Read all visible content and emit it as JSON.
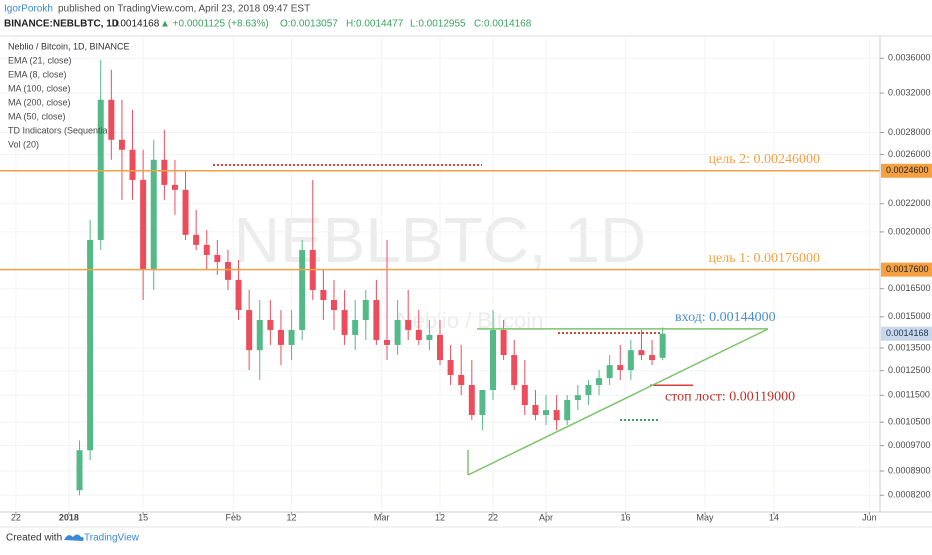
{
  "header": {
    "author": "IgorPorokh",
    "published": "published on TradingView.com, April 23, 2018 09:47 EST",
    "symbol": "BINANCE:NEBLBTC, 1D",
    "price": "0.0014168",
    "change": "▲ +0.0001125 (+8.63%)",
    "ohlc": [
      "O:0.0013057",
      "H:0.0014477",
      "L:0.0012955",
      "C:0.0014168"
    ]
  },
  "footer": {
    "created": "Created with",
    "brand": "TradingView"
  },
  "chart_data": {
    "type": "candlestick",
    "title": "Neblio / Bitcoin, 1D, BINANCE",
    "watermark": "NEBLBTC, 1D",
    "watermark_sub": "Neblio / Bitcoin",
    "legend": [
      "EMA (21, close)",
      "EMA (8, close)",
      "MA (100, close)",
      "MA (200, close)",
      "MA (50, close)",
      "TD Indicators (Sequentia",
      "Vol (20)"
    ],
    "log_scale": true,
    "grid": true,
    "up_color": "#53b987",
    "down_color": "#eb4d5c",
    "xlim": [
      "2017-12-19",
      "2018-06-03"
    ],
    "xticks": [
      {
        "value": "2017-12-22",
        "label": "22"
      },
      {
        "value": "2018-01-01",
        "label": "2018"
      },
      {
        "value": "2018-01-15",
        "label": "15"
      },
      {
        "value": "2018-02-01",
        "label": "Feb"
      },
      {
        "value": "2018-02-12",
        "label": "12"
      },
      {
        "value": "2018-03-01",
        "label": "Mar"
      },
      {
        "value": "2018-03-12",
        "label": "12"
      },
      {
        "value": "2018-03-22",
        "label": "22"
      },
      {
        "value": "2018-04-01",
        "label": "Apr"
      },
      {
        "value": "2018-04-16",
        "label": "16"
      },
      {
        "value": "2018-05-01",
        "label": "May"
      },
      {
        "value": "2018-05-14",
        "label": "14"
      },
      {
        "value": "2018-06-01",
        "label": "Jun"
      }
    ],
    "ylim": [
      0.00078,
      0.00383
    ],
    "yticks": [
      {
        "value": 0.0036,
        "label": "0.0036000"
      },
      {
        "value": 0.0032,
        "label": "0.0032000"
      },
      {
        "value": 0.0028,
        "label": "0.0028000"
      },
      {
        "value": 0.0026,
        "label": "0.0026000"
      },
      {
        "value": 0.0022,
        "label": "0.0022000"
      },
      {
        "value": 0.002,
        "label": "0.0020000"
      },
      {
        "value": 0.00165,
        "label": "0.0016500"
      },
      {
        "value": 0.0015,
        "label": "0.0015000"
      },
      {
        "value": 0.00135,
        "label": "0.0013500"
      },
      {
        "value": 0.00125,
        "label": "0.0012500"
      },
      {
        "value": 0.00115,
        "label": "0.0011500"
      },
      {
        "value": 0.00105,
        "label": "0.0010500"
      },
      {
        "value": 0.00097,
        "label": "0.0009700"
      },
      {
        "value": 0.00089,
        "label": "0.0008900"
      },
      {
        "value": 0.00082,
        "label": "0.0008200"
      }
    ],
    "x": [
      "2018-01-03",
      "2018-01-05",
      "2018-01-07",
      "2018-01-09",
      "2018-01-11",
      "2018-01-13",
      "2018-01-15",
      "2018-01-17",
      "2018-01-19",
      "2018-01-21",
      "2018-01-23",
      "2018-01-25",
      "2018-01-27",
      "2018-01-29",
      "2018-01-31",
      "2018-02-02",
      "2018-02-04",
      "2018-02-06",
      "2018-02-08",
      "2018-02-10",
      "2018-02-12",
      "2018-02-14",
      "2018-02-16",
      "2018-02-18",
      "2018-02-20",
      "2018-02-22",
      "2018-02-24",
      "2018-02-26",
      "2018-02-28",
      "2018-03-02",
      "2018-03-04",
      "2018-03-06",
      "2018-03-08",
      "2018-03-10",
      "2018-03-12",
      "2018-03-14",
      "2018-03-16",
      "2018-03-18",
      "2018-03-20",
      "2018-03-22",
      "2018-03-24",
      "2018-03-26",
      "2018-03-28",
      "2018-03-30",
      "2018-04-01",
      "2018-04-03",
      "2018-04-05",
      "2018-04-07",
      "2018-04-09",
      "2018-04-11",
      "2018-04-13",
      "2018-04-15",
      "2018-04-17",
      "2018-04-19",
      "2018-04-21",
      "2018-04-23"
    ],
    "open": [
      0.000834,
      0.000955,
      0.001946,
      0.003128,
      0.002732,
      0.002641,
      0.002385,
      0.001758,
      0.002553,
      0.002345,
      0.002306,
      0.00198,
      0.001914,
      0.00185,
      0.001806,
      0.0017,
      0.001535,
      0.00134,
      0.001484,
      0.001435,
      0.001364,
      0.001435,
      0.001881,
      0.001643,
      0.001588,
      0.001535,
      0.001411,
      0.001484,
      0.001588,
      0.001387,
      0.001364,
      0.001484,
      0.001435,
      0.001387,
      0.001411,
      0.001296,
      0.001232,
      0.001191,
      0.001076,
      0.001171,
      0.001435,
      0.001318,
      0.001191,
      0.001113,
      0.001076,
      0.001094,
      0.001057,
      0.001132,
      0.001151,
      0.001191,
      0.001219,
      0.001274,
      0.001253,
      0.00134,
      0.001318,
      0.0013057
    ],
    "high": [
      0.000987,
      0.002083,
      0.00358,
      0.003463,
      0.003128,
      0.003024,
      0.002641,
      0.002732,
      0.002826,
      0.002553,
      0.002468,
      0.002155,
      0.002013,
      0.001946,
      0.001881,
      0.001819,
      0.001643,
      0.001588,
      0.001588,
      0.001535,
      0.001535,
      0.001946,
      0.002385,
      0.001758,
      0.0017,
      0.001643,
      0.001588,
      0.001643,
      0.0017,
      0.001946,
      0.001588,
      0.001643,
      0.001535,
      0.001484,
      0.001484,
      0.001364,
      0.001364,
      0.001296,
      0.001171,
      0.001535,
      0.001484,
      0.001387,
      0.001296,
      0.001171,
      0.001151,
      0.001151,
      0.001151,
      0.001191,
      0.001211,
      0.001253,
      0.001318,
      0.001364,
      0.001387,
      0.001435,
      0.001387,
      0.0014477
    ],
    "low": [
      0.00082,
      0.000923,
      0.001881,
      0.002553,
      0.002229,
      0.002229,
      0.001588,
      0.001643,
      0.002229,
      0.002119,
      0.001946,
      0.001881,
      0.001758,
      0.001729,
      0.001643,
      0.001484,
      0.001253,
      0.001211,
      0.001364,
      0.001274,
      0.001296,
      0.001387,
      0.001588,
      0.001484,
      0.001435,
      0.001364,
      0.00134,
      0.001387,
      0.001364,
      0.001296,
      0.001318,
      0.001387,
      0.001364,
      0.00134,
      0.001274,
      0.001191,
      0.001151,
      0.001057,
      0.001022,
      0.001132,
      0.001296,
      0.001171,
      0.001076,
      0.001057,
      0.00104,
      0.001022,
      0.00104,
      0.001094,
      0.001113,
      0.001151,
      0.001191,
      0.001211,
      0.001211,
      0.001296,
      0.001274,
      0.0012955
    ],
    "close": [
      0.000955,
      0.001946,
      0.003128,
      0.002732,
      0.002641,
      0.002385,
      0.001758,
      0.002553,
      0.002345,
      0.002306,
      0.00198,
      0.001914,
      0.00185,
      0.001806,
      0.0017,
      0.001535,
      0.00134,
      0.001484,
      0.001435,
      0.001364,
      0.001435,
      0.001881,
      0.001643,
      0.001588,
      0.001535,
      0.001411,
      0.001484,
      0.001588,
      0.001387,
      0.001364,
      0.001484,
      0.001435,
      0.001387,
      0.001411,
      0.001296,
      0.001232,
      0.001191,
      0.001076,
      0.001171,
      0.001435,
      0.001318,
      0.001191,
      0.001113,
      0.001076,
      0.001094,
      0.001057,
      0.001132,
      0.001151,
      0.001191,
      0.001219,
      0.001274,
      0.001253,
      0.00134,
      0.001318,
      0.001296,
      0.0014168
    ],
    "last_price": {
      "value": 0.0014168,
      "label": "0.0014168"
    },
    "levels": [
      {
        "value": 0.00246,
        "label": "0.0024600",
        "note": "цель 2: 0.00246000",
        "color": "#f5a142"
      },
      {
        "value": 0.00176,
        "label": "0.0017600",
        "note": "цель 1: 0.00176000",
        "color": "#f5a142"
      }
    ],
    "entry": {
      "value": 0.00144,
      "note": "вход: 0.00144000",
      "color": "#7cc36a",
      "text_color": "#4a8fd0"
    },
    "stop": {
      "value": 0.00119,
      "note": "стоп лост: 0.00119000",
      "color": "#e03a3a",
      "text_color": "#c0312b"
    }
  }
}
